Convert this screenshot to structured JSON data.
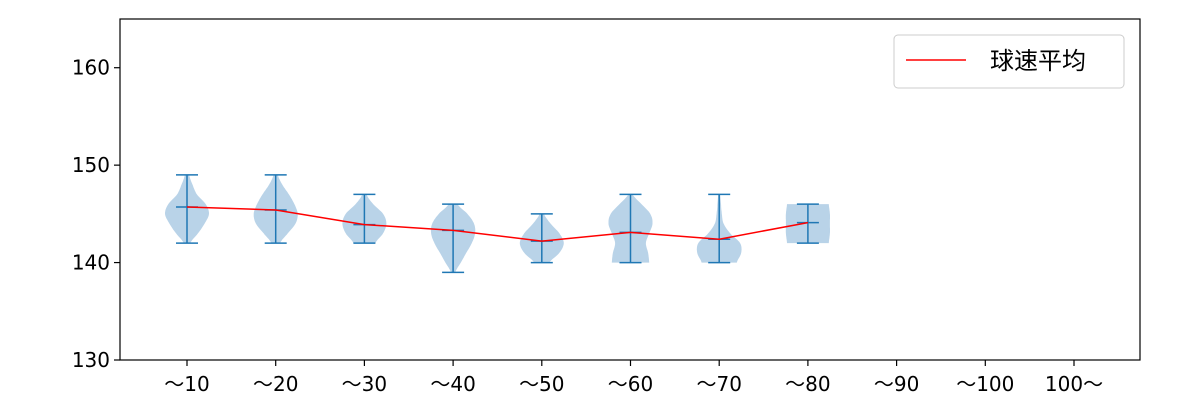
{
  "chart_data": {
    "type": "violin",
    "categories": [
      "～10",
      "～20",
      "～30",
      "～40",
      "～50",
      "～60",
      "～70",
      "～80",
      "～90",
      "～100",
      "100～"
    ],
    "ylim": [
      130,
      165
    ],
    "yticks": [
      130,
      140,
      150,
      160
    ],
    "grid": false,
    "legend": {
      "position": "top-right",
      "entries": [
        "球速平均"
      ]
    },
    "series": [
      {
        "name": "球速平均",
        "type": "line",
        "color": "#ff0000",
        "values": [
          145.7,
          145.4,
          143.9,
          143.3,
          142.2,
          143.1,
          142.4,
          144.1,
          null,
          null,
          null
        ]
      }
    ],
    "distributions": [
      {
        "category": "～10",
        "min": 142,
        "max": 149,
        "mean": 145.7,
        "profile": [
          [
            142,
            0.15
          ],
          [
            143,
            0.5
          ],
          [
            144,
            0.8
          ],
          [
            145,
            1.0
          ],
          [
            146,
            0.85
          ],
          [
            147,
            0.45
          ],
          [
            148,
            0.25
          ],
          [
            149,
            0.1
          ]
        ]
      },
      {
        "category": "～20",
        "min": 142,
        "max": 149,
        "mean": 145.4,
        "profile": [
          [
            142,
            0.2
          ],
          [
            143,
            0.55
          ],
          [
            144,
            0.9
          ],
          [
            145,
            1.0
          ],
          [
            146,
            0.85
          ],
          [
            147,
            0.6
          ],
          [
            148,
            0.3
          ],
          [
            149,
            0.1
          ]
        ]
      },
      {
        "category": "～30",
        "min": 142,
        "max": 147,
        "mean": 143.9,
        "profile": [
          [
            142,
            0.5
          ],
          [
            143,
            0.85
          ],
          [
            144,
            1.0
          ],
          [
            145,
            0.85
          ],
          [
            146,
            0.4
          ],
          [
            147,
            0.1
          ]
        ]
      },
      {
        "category": "～40",
        "min": 139,
        "max": 146,
        "mean": 143.3,
        "profile": [
          [
            139,
            0.1
          ],
          [
            140,
            0.35
          ],
          [
            141,
            0.6
          ],
          [
            142,
            0.85
          ],
          [
            143,
            1.0
          ],
          [
            144,
            0.95
          ],
          [
            145,
            0.65
          ],
          [
            146,
            0.2
          ]
        ]
      },
      {
        "category": "～50",
        "min": 140,
        "max": 145,
        "mean": 142.2,
        "profile": [
          [
            140,
            0.35
          ],
          [
            141,
            0.8
          ],
          [
            142,
            1.0
          ],
          [
            143,
            0.8
          ],
          [
            144,
            0.4
          ],
          [
            145,
            0.1
          ]
        ]
      },
      {
        "category": "～60",
        "min": 140,
        "max": 147,
        "mean": 143.1,
        "profile": [
          [
            140,
            0.85
          ],
          [
            141,
            0.8
          ],
          [
            142,
            0.7
          ],
          [
            143,
            0.85
          ],
          [
            144,
            1.0
          ],
          [
            145,
            0.9
          ],
          [
            146,
            0.5
          ],
          [
            147,
            0.1
          ]
        ]
      },
      {
        "category": "～70",
        "min": 140,
        "max": 147,
        "mean": 142.4,
        "profile": [
          [
            140,
            0.8
          ],
          [
            141,
            1.0
          ],
          [
            142,
            0.95
          ],
          [
            143,
            0.5
          ],
          [
            144,
            0.2
          ],
          [
            145,
            0.12
          ],
          [
            146,
            0.08
          ],
          [
            147,
            0.05
          ]
        ]
      },
      {
        "category": "～80",
        "min": 142,
        "max": 146,
        "mean": 144.1,
        "profile": [
          [
            142,
            0.95
          ],
          [
            143,
            1.0
          ],
          [
            144,
            1.0
          ],
          [
            145,
            1.0
          ],
          [
            146,
            0.95
          ]
        ]
      }
    ],
    "colors": {
      "violin_fill": "#a8c8e2",
      "violin_line": "#1f77b4",
      "mean_line": "#ff0000",
      "axis": "#000000"
    }
  }
}
